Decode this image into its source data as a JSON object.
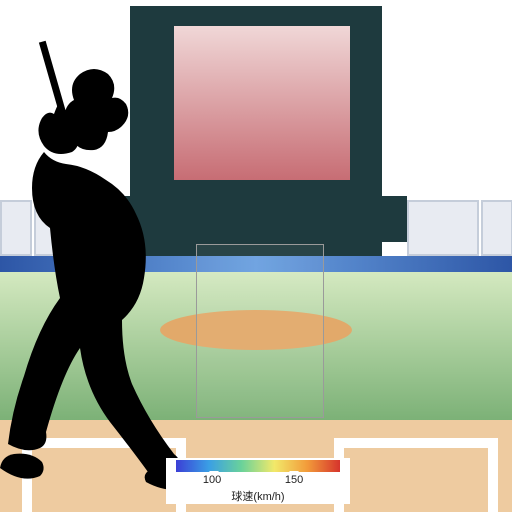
{
  "scene": {
    "background_color": "#ffffff",
    "scoreboard_color": "#1e3a3e",
    "heat_gradient": {
      "top_color": "#f0d7d7",
      "bottom_color": "#c76d74"
    },
    "wall_gradient": {
      "left": "#2d56a6",
      "mid": "#6aa0e0",
      "right": "#2d56a6"
    },
    "grass_gradient": {
      "top": "#d4e9c0",
      "bottom": "#6fa96c"
    },
    "mound_color": "#e2a96a",
    "dirt_color": "#eecba0",
    "zone_border": "#9a9a9a",
    "batter_color": "#000000"
  },
  "legend": {
    "label": "球速(km/h)",
    "ticks": [
      {
        "value": "100",
        "pos": 0.22
      },
      {
        "value": "150",
        "pos": 0.72
      }
    ],
    "gradient_colors": [
      "#3b3fd6",
      "#3a9fe5",
      "#6ad29a",
      "#f2e96a",
      "#f29b3a",
      "#d6342c"
    ]
  }
}
